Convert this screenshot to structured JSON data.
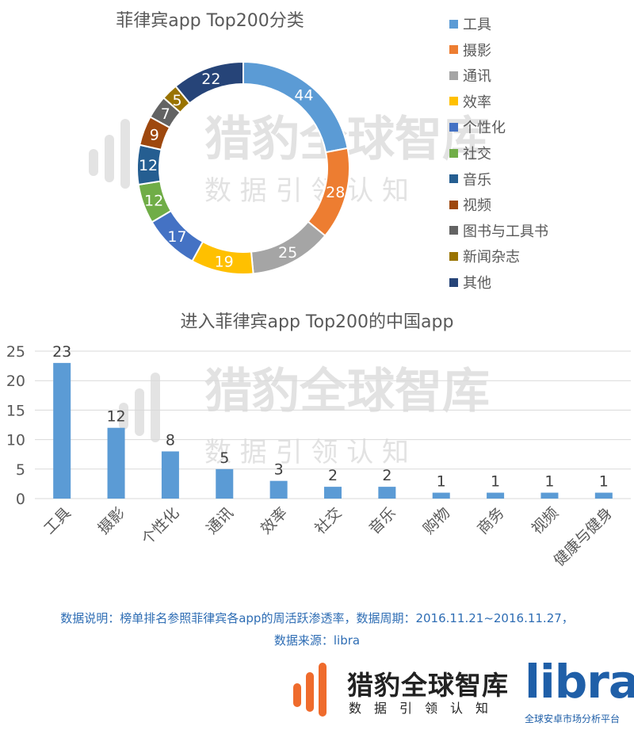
{
  "watermark": {
    "name": "猎豹全球智库",
    "tagline": "数 据 引 领 认 知"
  },
  "chart_data": [
    {
      "type": "pie",
      "title": "菲律宾app Top200分类",
      "categories": [
        "工具",
        "摄影",
        "通讯",
        "效率",
        "个性化",
        "社交",
        "音乐",
        "视频",
        "图书与工具书",
        "新闻杂志",
        "其他"
      ],
      "values": [
        44,
        28,
        25,
        19,
        17,
        12,
        12,
        9,
        7,
        5,
        22
      ],
      "colors": [
        "#5b9bd5",
        "#ed7d31",
        "#a5a5a5",
        "#ffc000",
        "#4472c4",
        "#70ad47",
        "#255e91",
        "#9e480e",
        "#636363",
        "#997300",
        "#264478"
      ],
      "legend": "right"
    },
    {
      "type": "bar",
      "title": "进入菲律宾app Top200的中国app",
      "categories": [
        "工具",
        "摄影",
        "个性化",
        "通讯",
        "效率",
        "社交",
        "音乐",
        "购物",
        "商务",
        "视频",
        "健康与健身"
      ],
      "values": [
        23,
        12,
        8,
        5,
        3,
        2,
        2,
        1,
        1,
        1,
        1
      ],
      "ylim": [
        0,
        25
      ],
      "yticks": [
        0,
        5,
        10,
        15,
        20,
        25
      ],
      "color": "#5b9bd5",
      "grid": true,
      "xlabel": "",
      "ylabel": ""
    }
  ],
  "note": {
    "line1": "数据说明：榜单排名参照菲律宾各app的周活跃渗透率，数据周期：2016.11.21~2016.11.27，",
    "line2": "数据来源：libra"
  },
  "footer": {
    "cheetah_name": "猎豹全球智库",
    "cheetah_tagline": "数据引领认知",
    "libra_word": "libra",
    "libra_tagline": "全球安卓市场分析平台",
    "brand_orange": "#ef6b2c",
    "brand_blue": "#1f5fa8"
  }
}
